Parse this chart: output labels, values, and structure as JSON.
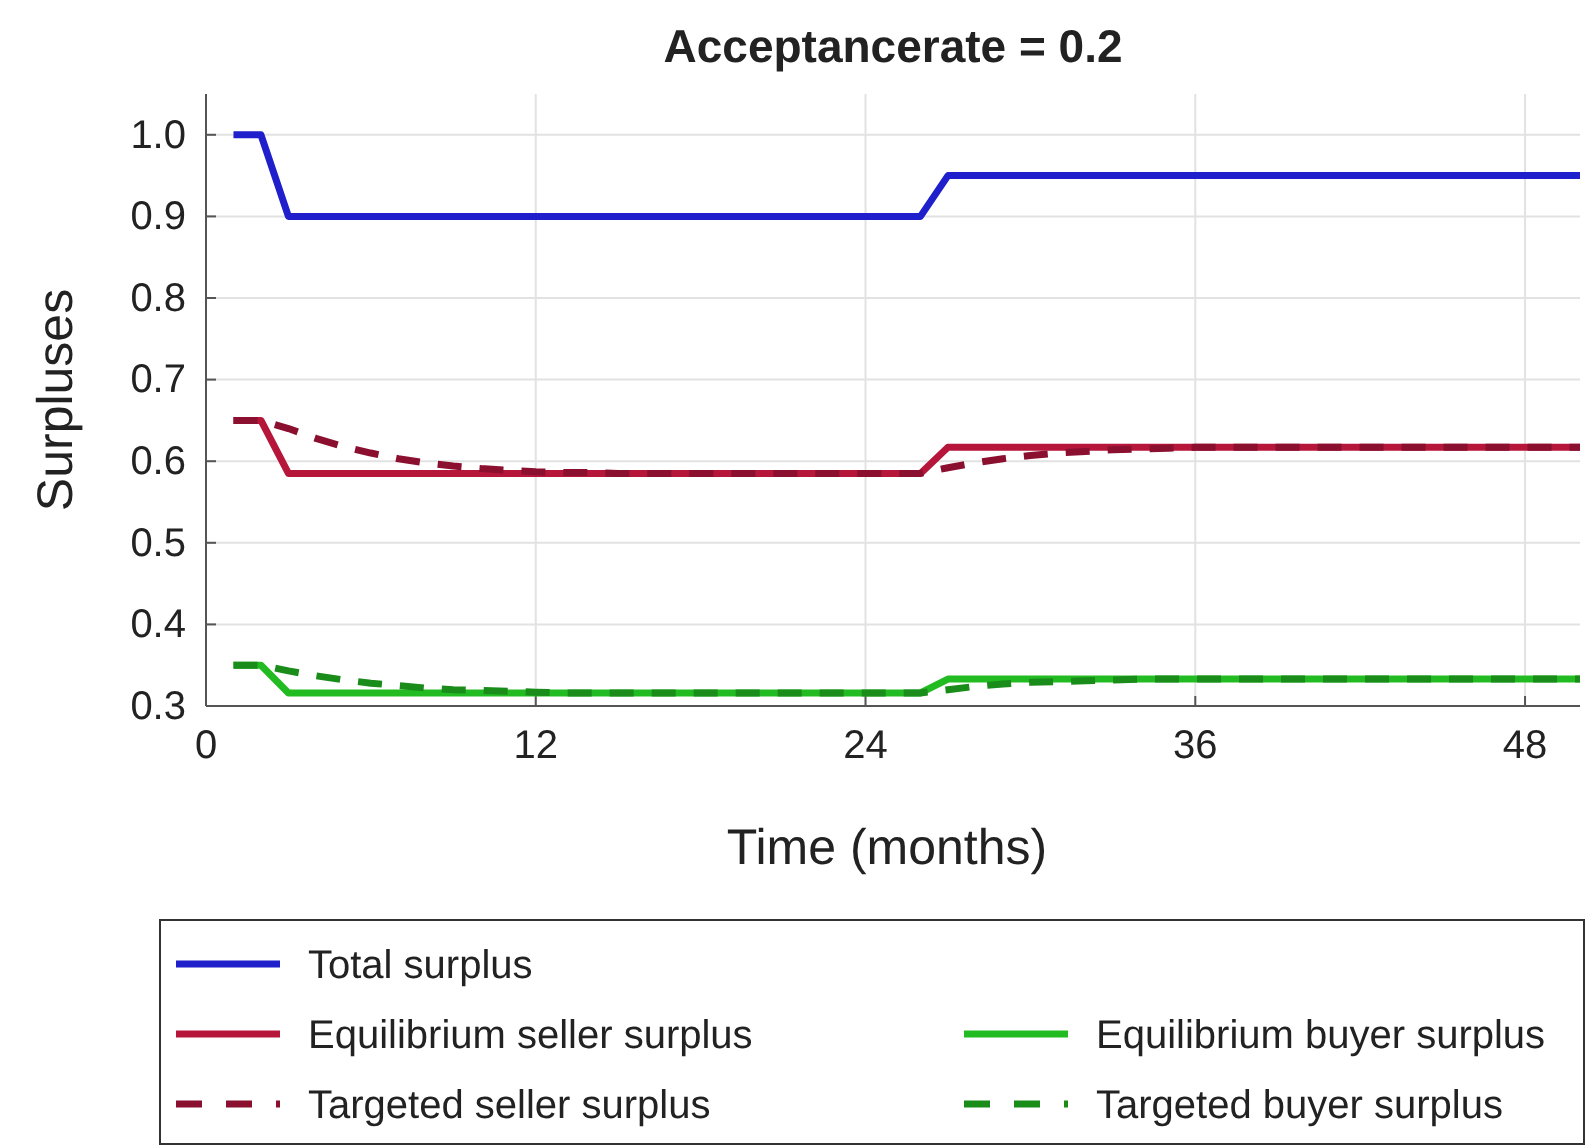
{
  "chart_data": {
    "type": "line",
    "title": "Acceptancerate = 0.2",
    "xlabel": "Time (months)",
    "ylabel": "Surpluses",
    "x": [
      1,
      2,
      3,
      4,
      5,
      6,
      7,
      8,
      9,
      10,
      11,
      12,
      13,
      14,
      15,
      16,
      17,
      18,
      19,
      20,
      21,
      22,
      23,
      24,
      25,
      26,
      27,
      28,
      29,
      30,
      31,
      32,
      33,
      34,
      35,
      36,
      37,
      38,
      39,
      40,
      41,
      42,
      43,
      44,
      45,
      46,
      47,
      48,
      49,
      50
    ],
    "xlim": [
      0,
      50
    ],
    "xticks": [
      0,
      12,
      24,
      36,
      48
    ],
    "ylim": [
      0.3,
      1.05
    ],
    "yticks": [
      {
        "value": 0.3,
        "label": "0.3"
      },
      {
        "value": 0.4,
        "label": "0.4"
      },
      {
        "value": 0.5,
        "label": "0.5"
      },
      {
        "value": 0.6,
        "label": "0.6"
      },
      {
        "value": 0.7,
        "label": "0.7"
      },
      {
        "value": 0.8,
        "label": "0.8"
      },
      {
        "value": 0.9,
        "label": "0.9"
      },
      {
        "value": 1.0,
        "label": "1.0"
      }
    ],
    "grid": true,
    "legend": "bottom",
    "marker": "none",
    "series": [
      {
        "name": "Total surplus",
        "color": "#1f1fcc",
        "line_style": "solid",
        "values": [
          1,
          1,
          0.9,
          0.9,
          0.9,
          0.9,
          0.9,
          0.9,
          0.9,
          0.9,
          0.9,
          0.9,
          0.9,
          0.9,
          0.9,
          0.9,
          0.9,
          0.9,
          0.9,
          0.9,
          0.9,
          0.9,
          0.9,
          0.9,
          0.9,
          0.9,
          0.95,
          0.95,
          0.95,
          0.95,
          0.95,
          0.95,
          0.95,
          0.95,
          0.95,
          0.95,
          0.95,
          0.95,
          0.95,
          0.95,
          0.95,
          0.95,
          0.95,
          0.95,
          0.95,
          0.95,
          0.95,
          0.95,
          0.95,
          0.95
        ]
      },
      {
        "name": "Equilibrium seller surplus",
        "color": "#b5163a",
        "line_style": "solid",
        "values": [
          0.65,
          0.65,
          0.585,
          0.585,
          0.585,
          0.585,
          0.585,
          0.585,
          0.585,
          0.585,
          0.585,
          0.585,
          0.585,
          0.585,
          0.585,
          0.585,
          0.585,
          0.585,
          0.585,
          0.585,
          0.585,
          0.585,
          0.585,
          0.585,
          0.585,
          0.585,
          0.617,
          0.617,
          0.617,
          0.617,
          0.617,
          0.617,
          0.617,
          0.617,
          0.617,
          0.617,
          0.617,
          0.617,
          0.617,
          0.617,
          0.617,
          0.617,
          0.617,
          0.617,
          0.617,
          0.617,
          0.617,
          0.617,
          0.617,
          0.617
        ]
      },
      {
        "name": "Equilibrium buyer surplus",
        "color": "#22bb22",
        "line_style": "solid",
        "values": [
          0.35,
          0.35,
          0.316,
          0.316,
          0.316,
          0.316,
          0.316,
          0.316,
          0.316,
          0.316,
          0.316,
          0.316,
          0.316,
          0.316,
          0.316,
          0.316,
          0.316,
          0.316,
          0.316,
          0.316,
          0.316,
          0.316,
          0.316,
          0.316,
          0.316,
          0.316,
          0.333,
          0.333,
          0.333,
          0.333,
          0.333,
          0.333,
          0.333,
          0.333,
          0.333,
          0.333,
          0.333,
          0.333,
          0.333,
          0.333,
          0.333,
          0.333,
          0.333,
          0.333,
          0.333,
          0.333,
          0.333,
          0.333,
          0.333,
          0.333
        ]
      },
      {
        "name": "Targeted seller surplus",
        "color": "#8b1030",
        "line_style": "dashed",
        "values": [
          0.65,
          0.65,
          0.64,
          0.628,
          0.618,
          0.61,
          0.603,
          0.598,
          0.594,
          0.591,
          0.589,
          0.587,
          0.586,
          0.586,
          0.585,
          0.585,
          0.585,
          0.585,
          0.585,
          0.585,
          0.585,
          0.585,
          0.585,
          0.585,
          0.585,
          0.585,
          0.592,
          0.598,
          0.603,
          0.607,
          0.61,
          0.612,
          0.614,
          0.615,
          0.616,
          0.617,
          0.617,
          0.617,
          0.617,
          0.617,
          0.617,
          0.617,
          0.617,
          0.617,
          0.617,
          0.617,
          0.617,
          0.617,
          0.617,
          0.617
        ]
      },
      {
        "name": "Targeted buyer surplus",
        "color": "#1a8c1a",
        "line_style": "dashed",
        "values": [
          0.35,
          0.35,
          0.343,
          0.337,
          0.332,
          0.328,
          0.325,
          0.322,
          0.32,
          0.319,
          0.318,
          0.317,
          0.316,
          0.316,
          0.316,
          0.316,
          0.316,
          0.316,
          0.316,
          0.316,
          0.316,
          0.316,
          0.316,
          0.316,
          0.316,
          0.316,
          0.32,
          0.324,
          0.327,
          0.329,
          0.33,
          0.331,
          0.332,
          0.333,
          0.333,
          0.333,
          0.333,
          0.333,
          0.333,
          0.333,
          0.333,
          0.333,
          0.333,
          0.333,
          0.333,
          0.333,
          0.333,
          0.333,
          0.333,
          0.333
        ]
      }
    ]
  }
}
